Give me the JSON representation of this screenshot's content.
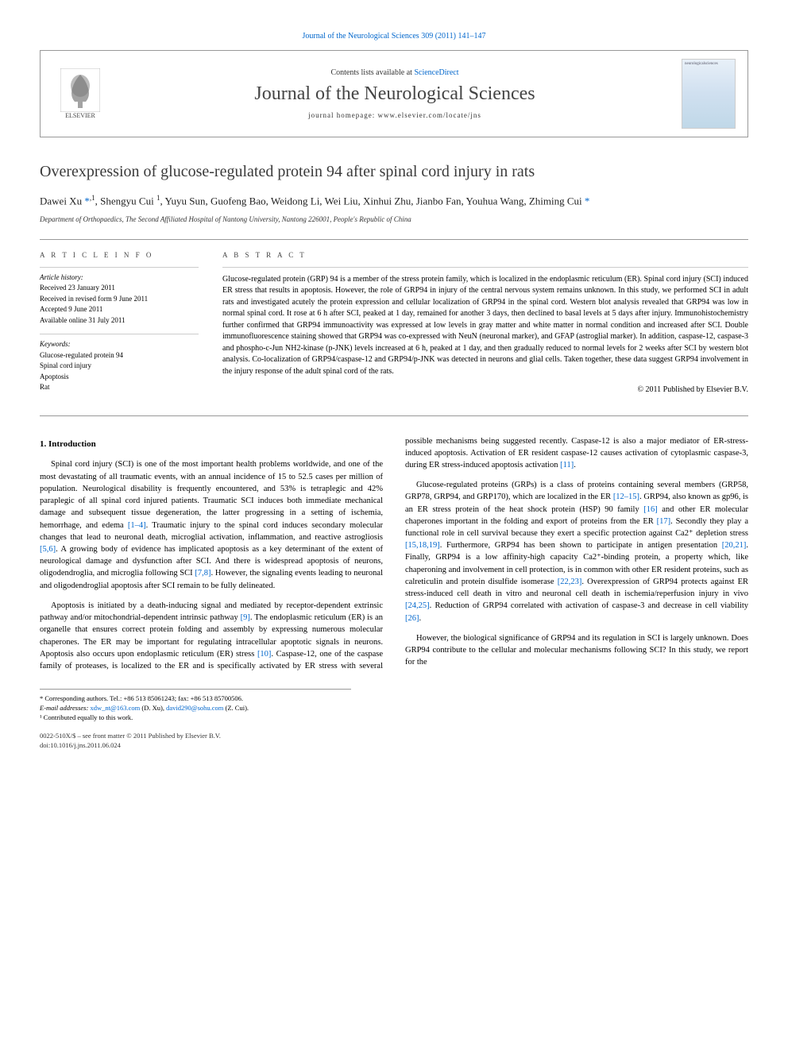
{
  "journal": {
    "top_citation": "Journal of the Neurological Sciences 309 (2011) 141–147",
    "contents_prefix": "Contents lists available at ",
    "contents_link": "ScienceDirect",
    "name": "Journal of the Neurological Sciences",
    "homepage_prefix": "journal homepage: ",
    "homepage": "www.elsevier.com/locate/jns",
    "publisher": "ELSEVIER",
    "cover_label": "neurologicalsciences"
  },
  "article": {
    "title": "Overexpression of glucose-regulated protein 94 after spinal cord injury in rats",
    "authors_html": "Dawei Xu <a>*</a><span class='sup'>,1</span>, Shengyu Cui <span class='sup'>1</span>, Yuyu Sun, Guofeng Bao, Weidong Li, Wei Liu, Xinhui Zhu, Jianbo Fan, Youhua Wang, Zhiming Cui <a>*</a>",
    "affiliation": "Department of Orthopaedics, The Second Affiliated Hospital of Nantong University, Nantong 226001, People's Republic of China"
  },
  "info": {
    "heading": "A R T I C L E   I N F O",
    "history_label": "Article history:",
    "history": [
      "Received 23 January 2011",
      "Received in revised form 9 June 2011",
      "Accepted 9 June 2011",
      "Available online 31 July 2011"
    ],
    "keywords_label": "Keywords:",
    "keywords": [
      "Glucose-regulated protein 94",
      "Spinal cord injury",
      "Apoptosis",
      "Rat"
    ]
  },
  "abstract": {
    "heading": "A B S T R A C T",
    "text": "Glucose-regulated protein (GRP) 94 is a member of the stress protein family, which is localized in the endoplasmic reticulum (ER). Spinal cord injury (SCI) induced ER stress that results in apoptosis. However, the role of GRP94 in injury of the central nervous system remains unknown. In this study, we performed SCI in adult rats and investigated acutely the protein expression and cellular localization of GRP94 in the spinal cord. Western blot analysis revealed that GRP94 was low in normal spinal cord. It rose at 6 h after SCI, peaked at 1 day, remained for another 3 days, then declined to basal levels at 5 days after injury. Immunohistochemistry further confirmed that GRP94 immunoactivity was expressed at low levels in gray matter and white matter in normal condition and increased after SCI. Double immunofluorescence staining showed that GRP94 was co-expressed with NeuN (neuronal marker), and GFAP (astroglial marker). In addition, caspase-12, caspase-3 and phospho-c-Jun NH2-kinase (p-JNK) levels increased at 6 h, peaked at 1 day, and then gradually reduced to normal levels for 2 weeks after SCI by western blot analysis. Co-localization of GRP94/caspase-12 and GRP94/p-JNK was detected in neurons and glial cells. Taken together, these data suggest GRP94 involvement in the injury response of the adult spinal cord of the rats.",
    "copyright": "© 2011 Published by Elsevier B.V."
  },
  "body": {
    "section1_heading": "1. Introduction",
    "p1": "Spinal cord injury (SCI) is one of the most important health problems worldwide, and one of the most devastating of all traumatic events, with an annual incidence of 15 to 52.5 cases per million of population. Neurological disability is frequently encountered, and 53% is tetraplegic and 42% paraplegic of all spinal cord injured patients. Traumatic SCI induces both immediate mechanical damage and subsequent tissue degeneration, the latter progressing in a setting of ischemia, hemorrhage, and edema ",
    "ref1": "[1–4]",
    "p1b": ". Traumatic injury to the spinal cord induces secondary molecular changes that lead to neuronal death, microglial activation, inflammation, and reactive astrogliosis ",
    "ref2": "[5,6]",
    "p1c": ". A growing body of evidence has implicated apoptosis as a key determinant of the extent of neurological damage and dysfunction after SCI. And there is widespread apoptosis of neurons, oligodendroglia, and microglia following SCI ",
    "ref3": "[7,8]",
    "p1d": ". However, the signaling events leading to neuronal and oligodendroglial apoptosis after SCI remain to be fully delineated.",
    "p2": "Apoptosis is initiated by a death-inducing signal and mediated by receptor-dependent extrinsic pathway and/or mitochondrial-dependent intrinsic pathway ",
    "ref4": "[9]",
    "p2b": ". The endoplasmic reticulum (ER) is an organelle that ensures correct protein folding and assembly by expressing numerous molecular chaperones. The ER may be important for regulating intracellular apoptotic signals in neurons. Apoptosis also occurs upon endoplasmic reticulum (ER) stress ",
    "ref5": "[10]",
    "p2c": ". Caspase-12, one of the caspase family of proteases, is localized to the ER and is specifically activated by ER stress with several possible mechanisms being suggested recently. Caspase-12 is also a major mediator of ER-stress-induced apoptosis. Activation of ER resident caspase-12 causes activation of cytoplasmic caspase-3, during ER stress-induced apoptosis activation ",
    "ref6": "[11]",
    "p2d": ".",
    "p3": "Glucose-regulated proteins (GRPs) is a class of proteins containing several members (GRP58, GRP78, GRP94, and GRP170), which are localized in the ER ",
    "ref7": "[12–15]",
    "p3b": ". GRP94, also known as gp96, is an ER stress protein of the heat shock protein (HSP) 90 family ",
    "ref8": "[16]",
    "p3c": " and other ER molecular chaperones important in the folding and export of proteins from the ER ",
    "ref9": "[17]",
    "p3d": ". Secondly they play a functional role in cell survival because they exert a specific protection against Ca2⁺ depletion stress ",
    "ref10": "[15,18,19]",
    "p3e": ". Furthermore, GRP94 has been shown to participate in antigen presentation ",
    "ref11": "[20,21]",
    "p3f": ". Finally, GRP94 is a low affinity-high capacity Ca2⁺-binding protein, a property which, like chaperoning and involvement in cell protection, is in common with other ER resident proteins, such as calreticulin and protein disulfide isomerase ",
    "ref12": "[22,23]",
    "p3g": ". Overexpression of GRP94 protects against ER stress-induced cell death in vitro and neuronal cell death in ischemia/reperfusion injury in vivo ",
    "ref13": "[24,25]",
    "p3h": ". Reduction of GRP94 correlated with activation of caspase-3 and decrease in cell viability ",
    "ref14": "[26]",
    "p3i": ".",
    "p4": "However, the biological significance of GRP94 and its regulation in SCI is largely unknown. Does GRP94 contribute to the cellular and molecular mechanisms following SCI? In this study, we report for the"
  },
  "footnotes": {
    "corr": "* Corresponding authors. Tel.: +86 513 85061243; fax: +86 513 85700506.",
    "email_label": "E-mail addresses: ",
    "email1": "xdw_nt@163.com",
    "email1_who": " (D. Xu), ",
    "email2": "david290@sohu.com",
    "email2_who": " (Z. Cui).",
    "contrib": "¹ Contributed equally to this work."
  },
  "footer": {
    "line1": "0022-510X/$ – see front matter © 2011 Published by Elsevier B.V.",
    "line2": "doi:10.1016/j.jns.2011.06.024"
  },
  "colors": {
    "link": "#0066cc",
    "text": "#000000",
    "rule": "#999999",
    "heading": "#3a3a3a"
  }
}
